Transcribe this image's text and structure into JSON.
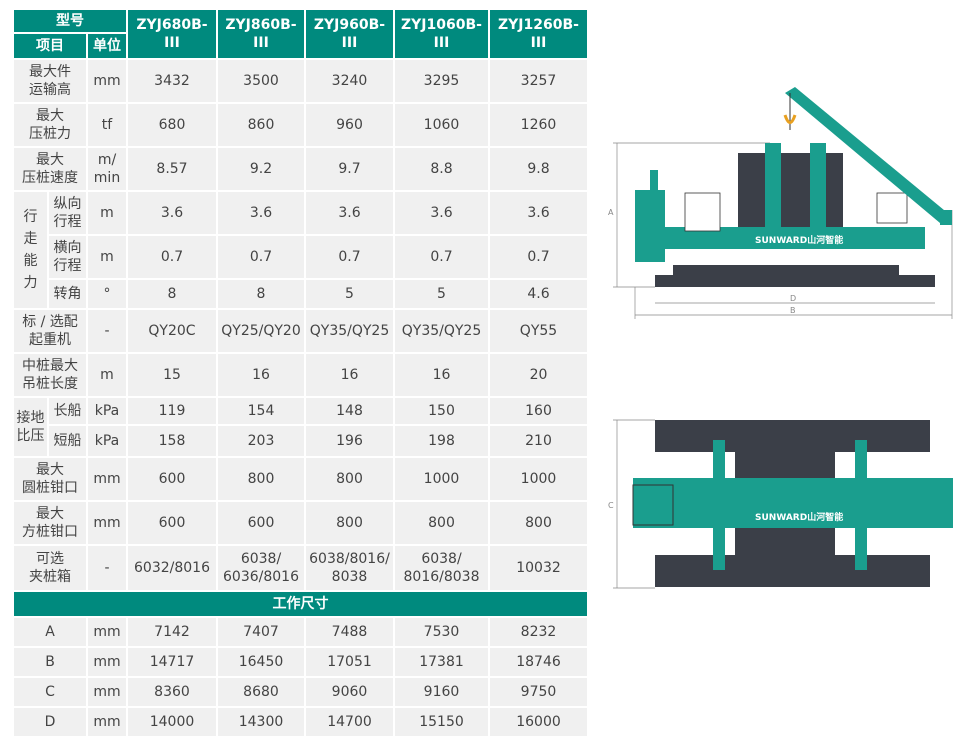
{
  "header": {
    "model_label": "型号",
    "item_label": "项目",
    "unit_label": "单位",
    "models": [
      "ZYJ680B- III",
      "ZYJ860B- III",
      "ZYJ960B- III",
      "ZYJ1060B- III",
      "ZYJ1260B- III"
    ]
  },
  "rows": {
    "transport_height": {
      "label": "最大件\n运输高",
      "unit": "mm",
      "values": [
        "3432",
        "3500",
        "3240",
        "3295",
        "3257"
      ]
    },
    "max_force": {
      "label": "最大\n压桩力",
      "unit": "tf",
      "values": [
        "680",
        "860",
        "960",
        "1060",
        "1260"
      ]
    },
    "max_speed": {
      "label": "最大\n压桩速度",
      "unit": "m/\nmin",
      "values": [
        "8.57",
        "9.2",
        "9.7",
        "8.8",
        "9.8"
      ]
    },
    "travel_group": "行走能力",
    "long_stroke": {
      "label": "纵向\n行程",
      "unit": "m",
      "values": [
        "3.6",
        "3.6",
        "3.6",
        "3.6",
        "3.6"
      ]
    },
    "lat_stroke": {
      "label": "横向\n行程",
      "unit": "m",
      "values": [
        "0.7",
        "0.7",
        "0.7",
        "0.7",
        "0.7"
      ]
    },
    "turn_angle": {
      "label": "转角",
      "unit": "°",
      "values": [
        "8",
        "8",
        "5",
        "5",
        "4.6"
      ]
    },
    "crane": {
      "label": "标 / 选配\n起重机",
      "unit": "-",
      "values": [
        "QY20C",
        "QY25/QY20",
        "QY35/QY25",
        "QY35/QY25",
        "QY55"
      ]
    },
    "lift_length": {
      "label": "中桩最大\n吊桩长度",
      "unit": "m",
      "values": [
        "15",
        "16",
        "16",
        "16",
        "20"
      ]
    },
    "pressure_group": "接地\n比压",
    "long_boat": {
      "label": "长船",
      "unit": "kPa",
      "values": [
        "119",
        "154",
        "148",
        "150",
        "160"
      ]
    },
    "short_boat": {
      "label": "短船",
      "unit": "kPa",
      "values": [
        "158",
        "203",
        "196",
        "198",
        "210"
      ]
    },
    "round_pile": {
      "label": "最大\n圆桩钳口",
      "unit": "mm",
      "values": [
        "600",
        "800",
        "800",
        "1000",
        "1000"
      ]
    },
    "square_pile": {
      "label": "最大\n方桩钳口",
      "unit": "mm",
      "values": [
        "600",
        "600",
        "800",
        "800",
        "800"
      ]
    },
    "clamp_box": {
      "label": "可选\n夹桩箱",
      "unit": "-",
      "values": [
        "6032/8016",
        "6038/\n6036/8016",
        "6038/8016/\n8038",
        "6038/\n8016/8038",
        "10032"
      ]
    }
  },
  "dimensions": {
    "title": "工作尺寸",
    "rows": [
      {
        "label": "A",
        "unit": "mm",
        "values": [
          "7142",
          "7407",
          "7488",
          "7530",
          "8232"
        ]
      },
      {
        "label": "B",
        "unit": "mm",
        "values": [
          "14717",
          "16450",
          "17051",
          "17381",
          "18746"
        ]
      },
      {
        "label": "C",
        "unit": "mm",
        "values": [
          "8360",
          "8680",
          "9060",
          "9160",
          "9750"
        ]
      },
      {
        "label": "D",
        "unit": "mm",
        "values": [
          "14000",
          "14300",
          "14700",
          "15150",
          "16000"
        ]
      }
    ]
  },
  "drawing": {
    "brand": "SUNWARD山河智能",
    "dim_labels": [
      "A",
      "B",
      "C",
      "D"
    ],
    "colors": {
      "teal": "#1a9e8e",
      "dark": "#3b3f48",
      "header": "#008a7e"
    }
  }
}
